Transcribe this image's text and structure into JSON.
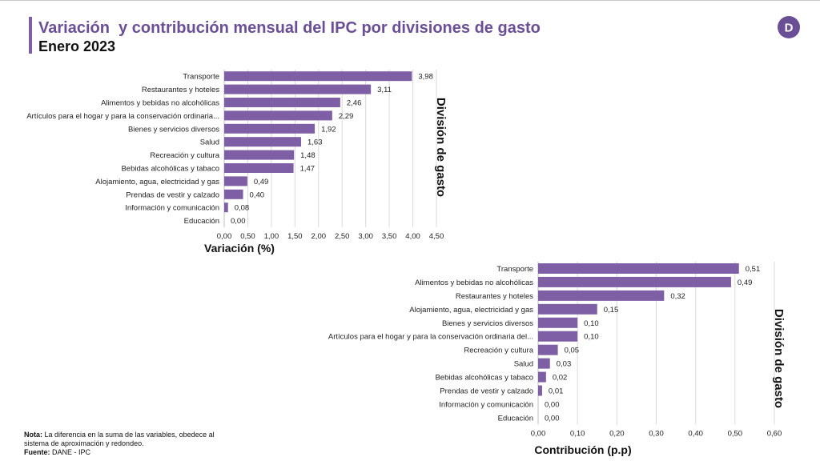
{
  "header": {
    "title": "Variación  y contribución mensual del IPC por divisiones de gasto",
    "subtitle": "Enero 2023",
    "logo_letter": "D"
  },
  "footer": {
    "note_label": "Nota:",
    "note_text": " La diferencia en la suma de las variables, obedece al sistema de aproximación y redondeo.",
    "source_label": "Fuente:",
    "source_text": " DANE - IPC"
  },
  "colors": {
    "bar": "#7e5ea4",
    "title": "#6b4f96",
    "grid": "#d9d9d9"
  },
  "chart_data": [
    {
      "type": "bar",
      "orientation": "horizontal",
      "categories": [
        "Transporte",
        "Restaurantes y hoteles",
        "Alimentos y bebidas no alcohólicas",
        "Artículos para el hogar y para la conservación ordinaria...",
        "Bienes y servicios diversos",
        "Salud",
        "Recreación y cultura",
        "Bebidas alcohólicas y tabaco",
        "Alojamiento, agua, electricidad y gas",
        "Prendas de vestir y calzado",
        "Información y comunicación",
        "Educación"
      ],
      "values": [
        3.98,
        3.11,
        2.46,
        2.29,
        1.92,
        1.63,
        1.48,
        1.47,
        0.49,
        0.4,
        0.08,
        0.0
      ],
      "value_labels": [
        "3,98",
        "3,11",
        "2,46",
        "2,29",
        "1,92",
        "1,63",
        "1,48",
        "1,47",
        "0,49",
        "0,40",
        "0,08",
        "0,00"
      ],
      "xlabel": "Variación (%)",
      "ylabel": "División de gasto",
      "xlim": [
        0,
        4.5
      ],
      "ticks": [
        0,
        0.5,
        1,
        1.5,
        2,
        2.5,
        3,
        3.5,
        4,
        4.5
      ],
      "tick_labels": [
        "0,00",
        "0,50",
        "1,00",
        "1,50",
        "2,00",
        "2,50",
        "3,00",
        "3,50",
        "4,00",
        "4,50"
      ],
      "grid": "vertical"
    },
    {
      "type": "bar",
      "orientation": "horizontal",
      "categories": [
        "Transporte",
        "Alimentos y bebidas no alcohólicas",
        "Restaurantes y hoteles",
        "Alojamiento, agua, electricidad y gas",
        "Bienes y servicios diversos",
        "Artículos para el hogar y para la conservación ordinaria del...",
        "Recreación y cultura",
        "Salud",
        "Bebidas alcohólicas y tabaco",
        "Prendas de vestir y calzado",
        "Información y comunicación",
        "Educación"
      ],
      "values": [
        0.51,
        0.49,
        0.32,
        0.15,
        0.1,
        0.1,
        0.05,
        0.03,
        0.02,
        0.01,
        0.0,
        0.0
      ],
      "value_labels": [
        "0,51",
        "0,49",
        "0,32",
        "0,15",
        "0,10",
        "0,10",
        "0,05",
        "0,03",
        "0,02",
        "0,01",
        "0,00",
        "0,00"
      ],
      "xlabel": "Contribución (p.p)",
      "ylabel": "División de gasto",
      "xlim": [
        0,
        0.6
      ],
      "ticks": [
        0,
        0.1,
        0.2,
        0.3,
        0.4,
        0.5,
        0.6
      ],
      "tick_labels": [
        "0,00",
        "0,10",
        "0,20",
        "0,30",
        "0,40",
        "0,50",
        "0,60"
      ],
      "grid": "vertical"
    }
  ]
}
